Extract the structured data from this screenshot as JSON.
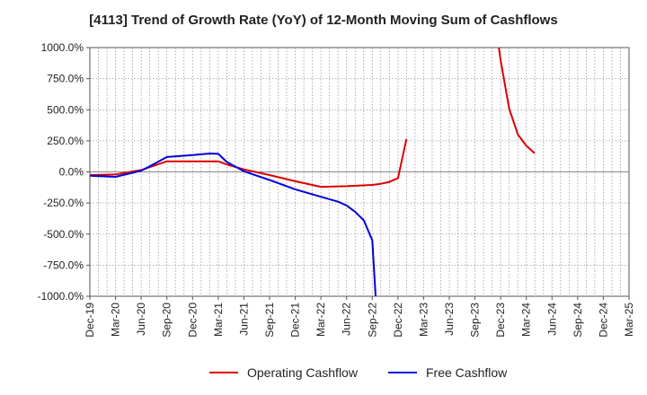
{
  "chart_data": {
    "type": "line",
    "title": "[4113]  Trend of Growth Rate (YoY) of 12-Month Moving Sum of Cashflows",
    "xlabel": "",
    "ylabel": "",
    "categories": [
      "Dec-19",
      "Mar-20",
      "Jun-20",
      "Sep-20",
      "Dec-20",
      "Mar-21",
      "Jun-21",
      "Sep-21",
      "Dec-21",
      "Mar-22",
      "Jun-22",
      "Sep-22",
      "Dec-22",
      "Mar-23",
      "Jun-23",
      "Sep-23",
      "Dec-23",
      "Mar-24",
      "Jun-24",
      "Sep-24",
      "Dec-24",
      "Mar-25"
    ],
    "y_ticks": [
      "1000.0%",
      "750.0%",
      "500.0%",
      "250.0%",
      "0.0%",
      "-250.0%",
      "-500.0%",
      "-750.0%",
      "-1000.0%"
    ],
    "ylim": [
      -1000,
      1000
    ],
    "grid": true,
    "legend_position": "bottom",
    "series": [
      {
        "name": "Operating Cashflow",
        "color": "#dd0000",
        "points": [
          [
            0,
            -25
          ],
          [
            1,
            -20
          ],
          [
            2,
            15
          ],
          [
            3,
            85
          ],
          [
            4,
            85
          ],
          [
            5,
            85
          ],
          [
            5.33,
            60
          ],
          [
            6,
            20
          ],
          [
            7,
            -25
          ],
          [
            8,
            -75
          ],
          [
            9,
            -120
          ],
          [
            10,
            -115
          ],
          [
            11,
            -105
          ],
          [
            11.33,
            -95
          ],
          [
            11.67,
            -80
          ],
          [
            12,
            -50
          ],
          [
            12.33,
            265
          ]
        ],
        "points_b": [
          [
            15.93,
            1000
          ],
          [
            16,
            900
          ],
          [
            16.33,
            510
          ],
          [
            16.67,
            300
          ],
          [
            17,
            210
          ],
          [
            17.33,
            150
          ]
        ]
      },
      {
        "name": "Free Cashflow",
        "color": "#0000dd",
        "points": [
          [
            0,
            -30
          ],
          [
            1,
            -40
          ],
          [
            2,
            10
          ],
          [
            2.33,
            45
          ],
          [
            3,
            120
          ],
          [
            4,
            135
          ],
          [
            4.67,
            148
          ],
          [
            5,
            145
          ],
          [
            5.33,
            80
          ],
          [
            6,
            5
          ],
          [
            7,
            -65
          ],
          [
            8,
            -140
          ],
          [
            9,
            -200
          ],
          [
            9.67,
            -240
          ],
          [
            10,
            -270
          ],
          [
            10.33,
            -320
          ],
          [
            10.67,
            -390
          ],
          [
            11,
            -550
          ],
          [
            11.13,
            -1000
          ]
        ]
      }
    ]
  }
}
